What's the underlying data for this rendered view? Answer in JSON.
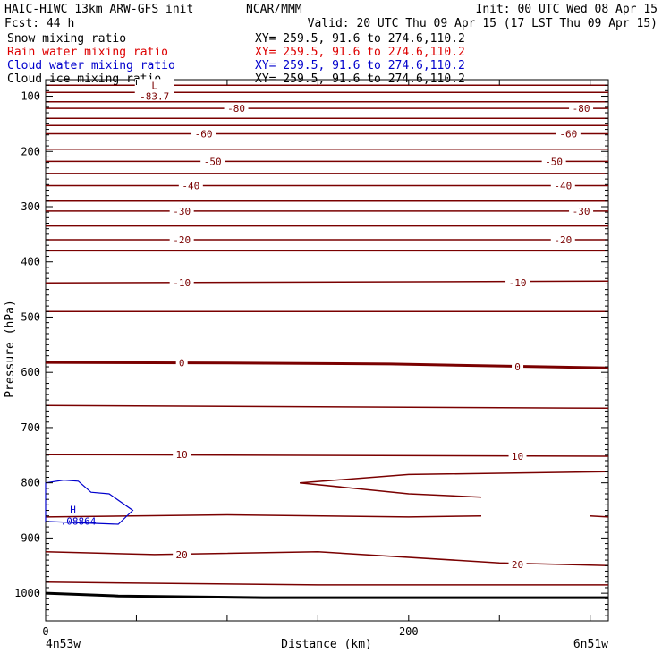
{
  "header": {
    "title_left": "HAIC-HIWC 13km ARW-GFS init",
    "center": "NCAR/MMM",
    "init": "Init: 00 UTC Wed 08 Apr 15",
    "fcst": "Fcst:   44 h",
    "valid": "Valid: 20 UTC Thu 09 Apr 15 (17 LST Thu 09 Apr 15)"
  },
  "legend": [
    {
      "label": "Snow mixing ratio",
      "xy": "XY= 259.5, 91.6 to 274.6,110.2",
      "color": "#000000"
    },
    {
      "label": "Rain water mixing ratio",
      "xy": "XY= 259.5, 91.6 to 274.6,110.2",
      "color": "#dd0000"
    },
    {
      "label": "Cloud water mixing ratio",
      "xy": "XY= 259.5, 91.6 to 274.6,110.2",
      "color": "#0000cc"
    },
    {
      "label": "Cloud ice mixing ratio",
      "xy": "XY= 259.5, 91.6 to 274.6,110.2",
      "color": "#000000"
    }
  ],
  "colors": {
    "temperature": "#7a0000",
    "cloud_water": "#0000cc",
    "terrain": "#000000"
  },
  "chart_data": {
    "type": "line",
    "xlabel": "Distance (km)",
    "ylabel": "Pressure (hPa)",
    "xlim": [
      0,
      310
    ],
    "ylim": [
      1050,
      70
    ],
    "y_ticks": [
      100,
      200,
      300,
      400,
      500,
      600,
      700,
      800,
      900,
      1000
    ],
    "x_ticks": [
      {
        "value": 0,
        "label": "0"
      },
      {
        "value": 200,
        "label": "200"
      }
    ],
    "x_minor_step": 50,
    "x_endpoints": {
      "left": "4n53w",
      "right": "6n51w"
    },
    "isotherms": [
      {
        "level": -80,
        "label": "-80",
        "p": [
          [
            0,
            122
          ],
          [
            310,
            122
          ]
        ],
        "labels_at": [
          [
            105,
            122
          ],
          [
            295,
            122
          ]
        ]
      },
      {
        "level": -60,
        "label": "-60",
        "p": [
          [
            0,
            168
          ],
          [
            310,
            168
          ]
        ],
        "labels_at": [
          [
            87,
            168
          ],
          [
            288,
            168
          ]
        ]
      },
      {
        "level": -50,
        "label": "-50",
        "p": [
          [
            0,
            218
          ],
          [
            310,
            218
          ]
        ],
        "labels_at": [
          [
            92,
            218
          ],
          [
            280,
            218
          ]
        ]
      },
      {
        "level": -40,
        "label": "-40",
        "p": [
          [
            0,
            262
          ],
          [
            310,
            262
          ]
        ],
        "labels_at": [
          [
            80,
            262
          ],
          [
            285,
            262
          ]
        ]
      },
      {
        "level": -30,
        "label": "-30",
        "p": [
          [
            0,
            308
          ],
          [
            310,
            308
          ]
        ],
        "labels_at": [
          [
            75,
            308
          ],
          [
            295,
            308
          ]
        ]
      },
      {
        "level": -20,
        "label": "-20",
        "p": [
          [
            0,
            360
          ],
          [
            310,
            360
          ]
        ],
        "labels_at": [
          [
            75,
            360
          ],
          [
            285,
            360
          ]
        ]
      },
      {
        "level": -10,
        "label": "-10",
        "p": [
          [
            0,
            438
          ],
          [
            310,
            435
          ]
        ],
        "labels_at": [
          [
            75,
            438
          ],
          [
            260,
            438
          ]
        ]
      },
      {
        "level": 0,
        "label": "0",
        "p": [
          [
            0,
            582
          ],
          [
            100,
            583
          ],
          [
            190,
            585
          ],
          [
            310,
            592
          ]
        ],
        "labels_at": [
          [
            75,
            583
          ],
          [
            260,
            590
          ]
        ]
      },
      {
        "level": 10,
        "label": "10",
        "p": [
          [
            0,
            749
          ],
          [
            310,
            752
          ]
        ],
        "labels_at": [
          [
            75,
            749
          ],
          [
            260,
            752
          ]
        ]
      },
      {
        "level": 20,
        "label": "20",
        "p": [
          [
            0,
            925
          ],
          [
            60,
            930
          ],
          [
            150,
            925
          ],
          [
            250,
            945
          ],
          [
            310,
            950
          ]
        ],
        "labels_at": [
          [
            75,
            930
          ],
          [
            260,
            948
          ]
        ]
      }
    ],
    "isotherms_unlabeled": [
      {
        "p": [
          [
            0,
            80
          ],
          [
            310,
            80
          ]
        ]
      },
      {
        "p": [
          [
            0,
            93
          ],
          [
            310,
            93
          ]
        ]
      },
      {
        "p": [
          [
            0,
            110
          ],
          [
            310,
            110
          ]
        ]
      },
      {
        "p": [
          [
            0,
            140
          ],
          [
            310,
            140
          ]
        ]
      },
      {
        "p": [
          [
            0,
            153
          ],
          [
            310,
            153
          ]
        ]
      },
      {
        "p": [
          [
            0,
            196
          ],
          [
            310,
            196
          ]
        ]
      },
      {
        "p": [
          [
            0,
            240
          ],
          [
            310,
            240
          ]
        ]
      },
      {
        "p": [
          [
            0,
            290
          ],
          [
            310,
            290
          ]
        ]
      },
      {
        "p": [
          [
            0,
            335
          ],
          [
            310,
            335
          ]
        ]
      },
      {
        "p": [
          [
            0,
            380
          ],
          [
            310,
            380
          ]
        ]
      },
      {
        "p": [
          [
            0,
            490
          ],
          [
            310,
            490
          ]
        ]
      },
      {
        "p": [
          [
            0,
            660
          ],
          [
            310,
            665
          ]
        ]
      },
      {
        "p": [
          [
            0,
            980
          ],
          [
            150,
            985
          ],
          [
            310,
            985
          ]
        ]
      },
      {
        "p": [
          [
            0,
            862
          ],
          [
            100,
            858
          ],
          [
            200,
            862
          ],
          [
            240,
            860
          ]
        ]
      },
      {
        "p": [
          [
            300,
            860
          ],
          [
            310,
            862
          ]
        ]
      },
      {
        "p": [
          [
            310,
            780
          ],
          [
            200,
            785
          ],
          [
            140,
            800
          ],
          [
            200,
            820
          ],
          [
            240,
            826
          ]
        ]
      }
    ],
    "extrema": [
      {
        "type": "L",
        "x": 60,
        "p": 85,
        "value": "-83.7"
      }
    ],
    "cloud_water": {
      "outline": [
        [
          0,
          800
        ],
        [
          10,
          795
        ],
        [
          18,
          797
        ],
        [
          25,
          817
        ],
        [
          35,
          820
        ],
        [
          48,
          850
        ],
        [
          40,
          875
        ],
        [
          0,
          870
        ]
      ],
      "extremum": {
        "type": "H",
        "x": 18,
        "p": 858,
        "value": ".08864"
      }
    },
    "terrain": [
      [
        0,
        1000
      ],
      [
        40,
        1005
      ],
      [
        120,
        1008
      ],
      [
        310,
        1008
      ]
    ]
  }
}
